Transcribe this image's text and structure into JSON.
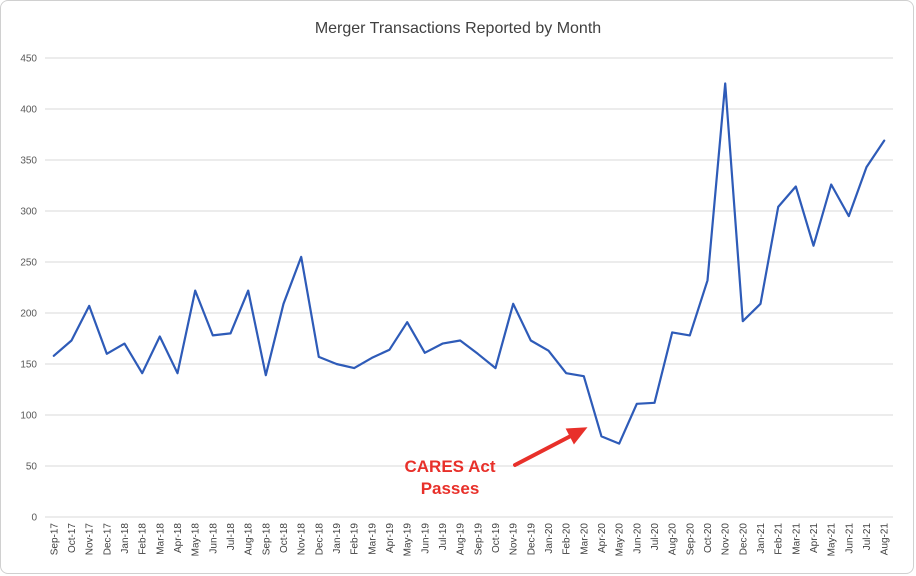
{
  "chart_data": {
    "type": "line",
    "title": "Merger Transactions Reported by Month",
    "xlabel": "",
    "ylabel": "",
    "ylim": [
      0,
      450
    ],
    "yticks": [
      0,
      50,
      100,
      150,
      200,
      250,
      300,
      350,
      400,
      450
    ],
    "grid": true,
    "legend": "none",
    "categories": [
      "Sep-17",
      "Oct-17",
      "Nov-17",
      "Dec-17",
      "Jan-18",
      "Feb-18",
      "Mar-18",
      "Apr-18",
      "May-18",
      "Jun-18",
      "Jul-18",
      "Aug-18",
      "Sep-18",
      "Oct-18",
      "Nov-18",
      "Dec-18",
      "Jan-19",
      "Feb-19",
      "Mar-19",
      "Apr-19",
      "May-19",
      "Jun-19",
      "Jul-19",
      "Aug-19",
      "Sep-19",
      "Oct-19",
      "Nov-19",
      "Dec-19",
      "Jan-20",
      "Feb-20",
      "Mar-20",
      "Apr-20",
      "May-20",
      "Jun-20",
      "Jul-20",
      "Aug-20",
      "Sep-20",
      "Oct-20",
      "Nov-20",
      "Dec-20",
      "Jan-21",
      "Feb-21",
      "Mar-21",
      "Apr-21",
      "May-21",
      "Jun-21",
      "Jul-21",
      "Aug-21"
    ],
    "series": [
      {
        "color": "#2e5bb8",
        "values": [
          158,
          173,
          207,
          160,
          170,
          141,
          177,
          141,
          222,
          178,
          180,
          222,
          139,
          209,
          255,
          157,
          150,
          146,
          156,
          164,
          191,
          161,
          170,
          173,
          160,
          146,
          209,
          173,
          163,
          141,
          138,
          79,
          72,
          111,
          112,
          181,
          178,
          232,
          425,
          192,
          209,
          304,
          324,
          266,
          326,
          295,
          343,
          369
        ]
      }
    ],
    "annotations": [
      {
        "lines": [
          "CARES Act",
          "Passes"
        ],
        "target_category": "Apr-20",
        "target_value": 88,
        "color": "#e8302a"
      }
    ]
  }
}
